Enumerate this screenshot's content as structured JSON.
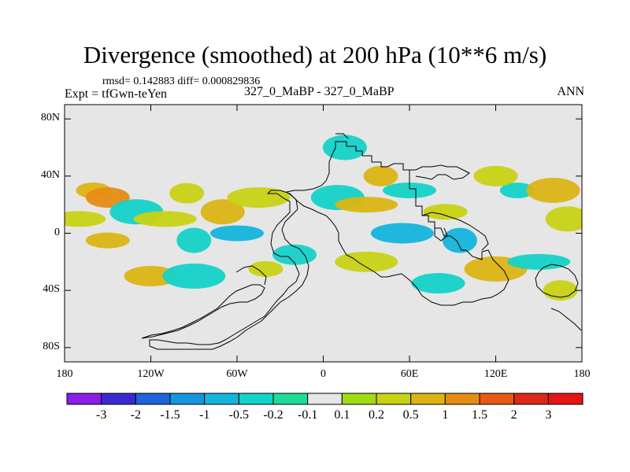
{
  "title": "Divergence (smoothed) at 200 hPa (10**6 m/s)",
  "stats": "rmsd= 0.142883 diff= 0.000829836",
  "expt": "Expt = tfGwn-teYen",
  "case": "327_0_MaBP - 327_0_MaBP",
  "period": "ANN",
  "chart_data": {
    "type": "heatmap",
    "title": "Divergence (smoothed) at 200 hPa (10**6 m/s)",
    "x_ticks": [
      "180",
      "120W",
      "60W",
      "0",
      "60E",
      "120E",
      "180"
    ],
    "x_values": [
      -180,
      -120,
      -60,
      0,
      60,
      120,
      180
    ],
    "y_ticks": [
      "80N",
      "40N",
      "0",
      "40S",
      "80S"
    ],
    "y_values": [
      80,
      40,
      0,
      -40,
      -80
    ],
    "xlim": [
      -180,
      180
    ],
    "ylim": [
      -90,
      90
    ],
    "background_color": "#e6e6e6",
    "colorbar": {
      "labels": [
        "-3",
        "-2",
        "-1.5",
        "-1",
        "-0.5",
        "-0.2",
        "-0.1",
        "0.1",
        "0.2",
        "0.5",
        "1",
        "1.5",
        "2",
        "3"
      ],
      "colors": [
        "#8a1ee6",
        "#3c28d2",
        "#1e64dc",
        "#1496dc",
        "#14b4dc",
        "#14d2c8",
        "#1edc96",
        "#e6e6e6",
        "#a0dc14",
        "#c8d214",
        "#dcb414",
        "#e68c14",
        "#e65a14",
        "#dc2814",
        "#e61414"
      ]
    },
    "regions": [
      {
        "lon": -160,
        "lat": 30,
        "level": "0.5"
      },
      {
        "lon": -150,
        "lat": 25,
        "level": "1"
      },
      {
        "lon": -130,
        "lat": 15,
        "level": "-0.2"
      },
      {
        "lon": -110,
        "lat": 10,
        "level": "0.2"
      },
      {
        "lon": -95,
        "lat": 28,
        "level": "0.2"
      },
      {
        "lon": -70,
        "lat": 15,
        "level": "0.5"
      },
      {
        "lon": -60,
        "lat": 0,
        "level": "-0.5"
      },
      {
        "lon": -45,
        "lat": 25,
        "level": "0.2"
      },
      {
        "lon": -90,
        "lat": -5,
        "level": "-0.2"
      },
      {
        "lon": -150,
        "lat": -5,
        "level": "0.5"
      },
      {
        "lon": -120,
        "lat": -30,
        "level": "0.5"
      },
      {
        "lon": -90,
        "lat": -30,
        "level": "-0.2"
      },
      {
        "lon": -40,
        "lat": -25,
        "level": "0.2"
      },
      {
        "lon": -20,
        "lat": -15,
        "level": "-0.2"
      },
      {
        "lon": 10,
        "lat": 25,
        "level": "-0.2"
      },
      {
        "lon": 30,
        "lat": 20,
        "level": "0.5"
      },
      {
        "lon": 40,
        "lat": 40,
        "level": "0.5"
      },
      {
        "lon": 15,
        "lat": 60,
        "level": "-0.2"
      },
      {
        "lon": 60,
        "lat": 30,
        "level": "-0.2"
      },
      {
        "lon": 55,
        "lat": 0,
        "level": "-0.5"
      },
      {
        "lon": 95,
        "lat": -5,
        "level": "-0.5"
      },
      {
        "lon": 85,
        "lat": 15,
        "level": "0.2"
      },
      {
        "lon": 80,
        "lat": -35,
        "level": "-0.2"
      },
      {
        "lon": 120,
        "lat": -25,
        "level": "0.5"
      },
      {
        "lon": 135,
        "lat": 30,
        "level": "-0.2"
      },
      {
        "lon": 120,
        "lat": 40,
        "level": "0.2"
      },
      {
        "lon": 160,
        "lat": 30,
        "level": "0.5"
      },
      {
        "lon": 150,
        "lat": -20,
        "level": "-0.2"
      },
      {
        "lon": 165,
        "lat": -40,
        "level": "0.2"
      },
      {
        "lon": 170,
        "lat": 10,
        "level": "0.2"
      },
      {
        "lon": -170,
        "lat": 10,
        "level": "0.2"
      },
      {
        "lon": 30,
        "lat": -20,
        "level": "0.2"
      }
    ]
  }
}
